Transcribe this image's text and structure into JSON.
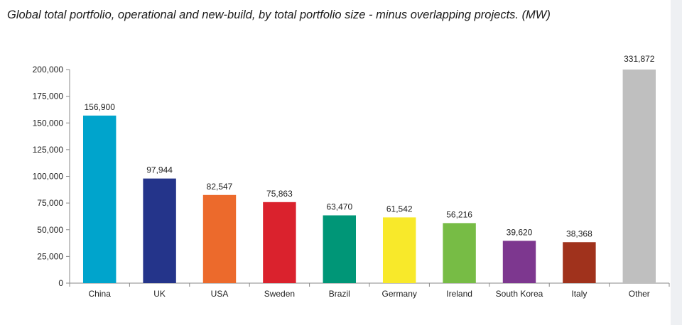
{
  "page": {
    "title": "Global total portfolio, operational and new-build, by total portfolio size - minus overlapping projects. (MW)"
  },
  "chart_data": {
    "type": "bar",
    "title": "Global total portfolio, operational and new-build, by total portfolio size - minus overlapping projects. (MW)",
    "xlabel": "",
    "ylabel": "",
    "ylim": [
      0,
      200000
    ],
    "yticks": [
      0,
      25000,
      50000,
      75000,
      100000,
      125000,
      150000,
      175000,
      200000
    ],
    "ytick_labels": [
      "0",
      "25,000",
      "50,000",
      "75,000",
      "100,000",
      "125,000",
      "150,000",
      "175,000",
      "200,000"
    ],
    "grid": false,
    "legend": "none",
    "categories": [
      "China",
      "UK",
      "USA",
      "Sweden",
      "Brazil",
      "Germany",
      "Ireland",
      "South Korea",
      "Italy",
      "Other"
    ],
    "values": [
      156900,
      97944,
      82547,
      75863,
      63470,
      61542,
      56216,
      39620,
      38368,
      331872
    ],
    "value_labels": [
      "156,900",
      "97,944",
      "82,547",
      "75,863",
      "63,470",
      "61,542",
      "56,216",
      "39,620",
      "38,368",
      "331,872"
    ],
    "clipped": [
      false,
      false,
      false,
      false,
      false,
      false,
      false,
      false,
      false,
      true
    ],
    "colors": [
      "#00a4cc",
      "#24348a",
      "#ec6a2c",
      "#da222d",
      "#009677",
      "#f8e92a",
      "#77bc45",
      "#7d378f",
      "#a0321c",
      "#bfbfbf"
    ]
  }
}
